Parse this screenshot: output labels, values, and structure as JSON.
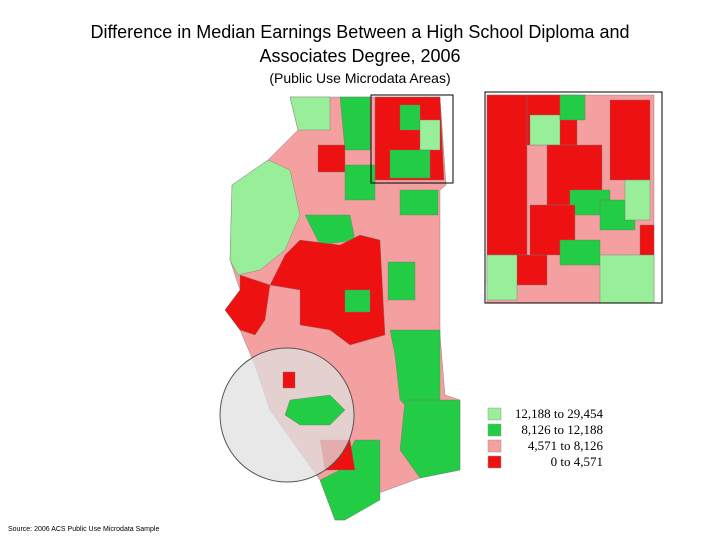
{
  "title_line1": "Difference in Median Earnings Between a High School Diploma and",
  "title_line2": "Associates Degree, 2006",
  "subtitle": "(Public Use Microdata Areas)",
  "legend": [
    {
      "label": "12,188 to 29,454",
      "color": "#99ee99"
    },
    {
      "label": "8,126 to 12,188",
      "color": "#22cc44"
    },
    {
      "label": "4,571 to  8,126",
      "color": "#f4a0a0"
    },
    {
      "label": "0 to  4,571",
      "color": "#ee1111"
    }
  ],
  "source": "Source: 2006 ACS Public Use Microdata Sample"
}
